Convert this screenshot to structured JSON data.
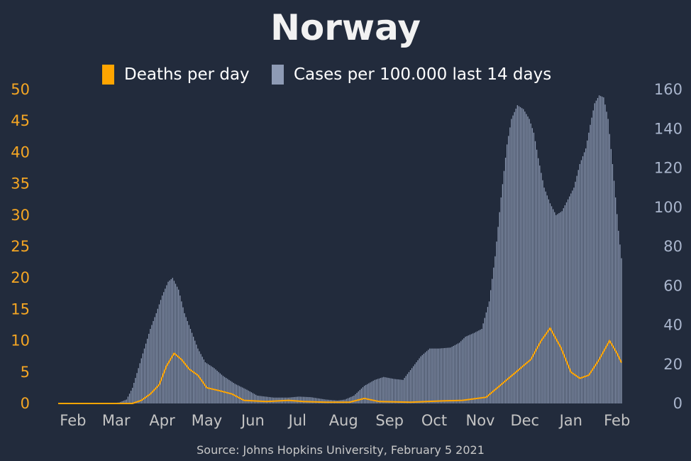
{
  "title": "Norway",
  "legend": {
    "deaths_label": "Deaths per day",
    "cases_label": "Cases per 100.000 last 14 days"
  },
  "source": "Source: Johns Hopkins University, February 5 2021",
  "colors": {
    "background": "#222b3c",
    "deaths": "#ffa500",
    "cases": "#8e9bb5",
    "left_axis": "#f5a623",
    "right_axis": "#a9b5cc",
    "x_axis": "#c4c4c4"
  },
  "chart_data": {
    "type": "bar",
    "title": "Norway",
    "x_range": [
      "2020-01-22",
      "2021-02-04"
    ],
    "x_tick_labels": [
      "Feb",
      "Mar",
      "Apr",
      "May",
      "Jun",
      "Jul",
      "Aug",
      "Sep",
      "Oct",
      "Nov",
      "Dec",
      "Jan",
      "Feb"
    ],
    "y_left": {
      "label": "Deaths per day",
      "ylim": [
        0,
        50
      ],
      "ticks": [
        0,
        5,
        10,
        15,
        20,
        25,
        30,
        35,
        40,
        45,
        50
      ]
    },
    "y_right": {
      "label": "Cases per 100.000 last 14 days",
      "ylim": [
        0,
        160
      ],
      "ticks": [
        0,
        20,
        40,
        60,
        80,
        100,
        120,
        140,
        160
      ]
    },
    "grid": false,
    "legend_position": "top-center",
    "series": [
      {
        "name": "Cases per 100.000 last 14 days",
        "type": "bar",
        "axis": "right",
        "points": [
          [
            "2020-01-22",
            0
          ],
          [
            "2020-02-26",
            0
          ],
          [
            "2020-03-03",
            0.5
          ],
          [
            "2020-03-08",
            2
          ],
          [
            "2020-03-12",
            8
          ],
          [
            "2020-03-16",
            18
          ],
          [
            "2020-03-20",
            28
          ],
          [
            "2020-03-24",
            38
          ],
          [
            "2020-03-28",
            46
          ],
          [
            "2020-04-01",
            55
          ],
          [
            "2020-04-05",
            62
          ],
          [
            "2020-04-08",
            64
          ],
          [
            "2020-04-12",
            58
          ],
          [
            "2020-04-16",
            46
          ],
          [
            "2020-04-20",
            38
          ],
          [
            "2020-04-25",
            28
          ],
          [
            "2020-04-30",
            21
          ],
          [
            "2020-05-06",
            18
          ],
          [
            "2020-05-12",
            14
          ],
          [
            "2020-05-20",
            10
          ],
          [
            "2020-05-28",
            7
          ],
          [
            "2020-06-04",
            4
          ],
          [
            "2020-06-15",
            3
          ],
          [
            "2020-06-25",
            3
          ],
          [
            "2020-07-02",
            3.5
          ],
          [
            "2020-07-10",
            3.2
          ],
          [
            "2020-07-20",
            2
          ],
          [
            "2020-07-28",
            1.5
          ],
          [
            "2020-08-02",
            2
          ],
          [
            "2020-08-08",
            4
          ],
          [
            "2020-08-15",
            9
          ],
          [
            "2020-08-22",
            12
          ],
          [
            "2020-08-28",
            13.5
          ],
          [
            "2020-09-04",
            12.5
          ],
          [
            "2020-09-10",
            12
          ],
          [
            "2020-09-16",
            18
          ],
          [
            "2020-09-22",
            24
          ],
          [
            "2020-09-28",
            28
          ],
          [
            "2020-10-04",
            28
          ],
          [
            "2020-10-12",
            28.5
          ],
          [
            "2020-10-18",
            31
          ],
          [
            "2020-10-22",
            34
          ],
          [
            "2020-10-28",
            36
          ],
          [
            "2020-11-02",
            38
          ],
          [
            "2020-11-07",
            52
          ],
          [
            "2020-11-11",
            75
          ],
          [
            "2020-11-15",
            105
          ],
          [
            "2020-11-19",
            132
          ],
          [
            "2020-11-22",
            145
          ],
          [
            "2020-11-26",
            152
          ],
          [
            "2020-11-30",
            150
          ],
          [
            "2020-12-04",
            145
          ],
          [
            "2020-12-07",
            138
          ],
          [
            "2020-12-10",
            125
          ],
          [
            "2020-12-14",
            110
          ],
          [
            "2020-12-18",
            102
          ],
          [
            "2020-12-22",
            96
          ],
          [
            "2020-12-26",
            98
          ],
          [
            "2020-12-30",
            104
          ],
          [
            "2021-01-03",
            110
          ],
          [
            "2021-01-07",
            122
          ],
          [
            "2021-01-11",
            130
          ],
          [
            "2021-01-14",
            142
          ],
          [
            "2021-01-17",
            153
          ],
          [
            "2021-01-20",
            157
          ],
          [
            "2021-01-23",
            156
          ],
          [
            "2021-01-26",
            145
          ],
          [
            "2021-01-29",
            122
          ],
          [
            "2021-01-31",
            105
          ],
          [
            "2021-02-02",
            88
          ],
          [
            "2021-02-04",
            74
          ]
        ]
      },
      {
        "name": "Deaths per day",
        "type": "line",
        "axis": "left",
        "points": [
          [
            "2020-01-22",
            0
          ],
          [
            "2020-03-12",
            0
          ],
          [
            "2020-03-18",
            0.5
          ],
          [
            "2020-03-24",
            1.5
          ],
          [
            "2020-03-30",
            3
          ],
          [
            "2020-04-04",
            6
          ],
          [
            "2020-04-09",
            8
          ],
          [
            "2020-04-14",
            7
          ],
          [
            "2020-04-19",
            5.5
          ],
          [
            "2020-04-25",
            4.5
          ],
          [
            "2020-05-01",
            2.5
          ],
          [
            "2020-05-10",
            2
          ],
          [
            "2020-05-18",
            1.5
          ],
          [
            "2020-05-26",
            0.5
          ],
          [
            "2020-06-10",
            0.3
          ],
          [
            "2020-06-25",
            0.5
          ],
          [
            "2020-07-05",
            0.3
          ],
          [
            "2020-07-20",
            0.2
          ],
          [
            "2020-08-05",
            0.2
          ],
          [
            "2020-08-15",
            0.8
          ],
          [
            "2020-08-25",
            0.3
          ],
          [
            "2020-09-15",
            0.2
          ],
          [
            "2020-10-05",
            0.4
          ],
          [
            "2020-10-20",
            0.5
          ],
          [
            "2020-11-05",
            1
          ],
          [
            "2020-11-15",
            3
          ],
          [
            "2020-11-25",
            5
          ],
          [
            "2020-12-05",
            7
          ],
          [
            "2020-12-12",
            10
          ],
          [
            "2020-12-18",
            12
          ],
          [
            "2020-12-25",
            9
          ],
          [
            "2021-01-01",
            5
          ],
          [
            "2021-01-07",
            4
          ],
          [
            "2021-01-13",
            4.5
          ],
          [
            "2021-01-20",
            7
          ],
          [
            "2021-01-27",
            10
          ],
          [
            "2021-02-01",
            8
          ],
          [
            "2021-02-04",
            6.5
          ]
        ]
      }
    ]
  }
}
